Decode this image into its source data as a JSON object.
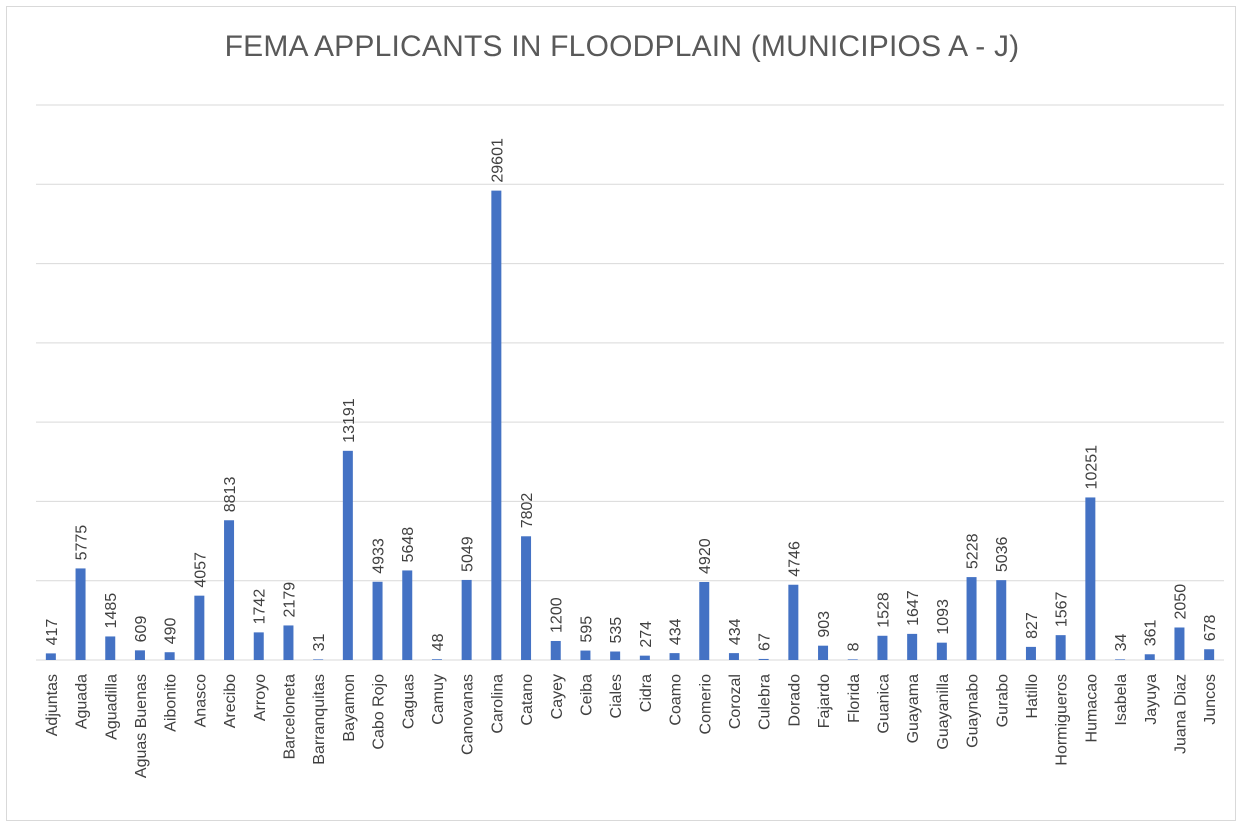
{
  "chart_data": {
    "type": "bar",
    "title": "FEMA APPLICANTS IN FLOODPLAIN (MUNICIPIOS A - J)",
    "xlabel": "",
    "ylabel": "",
    "ylim": [
      0,
      35000
    ],
    "grid": true,
    "legend": "none",
    "bar_color": "#4472c4",
    "categories": [
      "Adjuntas",
      "Aguada",
      "Aguadilla",
      "Aguas Buenas",
      "Aibonito",
      "Anasco",
      "Arecibo",
      "Arroyo",
      "Barceloneta",
      "Barranquitas",
      "Bayamon",
      "Cabo Rojo",
      "Caguas",
      "Camuy",
      "Canovanas",
      "Carolina",
      "Catano",
      "Cayey",
      "Ceiba",
      "Ciales",
      "Cidra",
      "Coamo",
      "Comerio",
      "Corozal",
      "Culebra",
      "Dorado",
      "Fajardo",
      "Florida",
      "Guanica",
      "Guayama",
      "Guayanilla",
      "Guaynabo",
      "Gurabo",
      "Hatillo",
      "Hormigueros",
      "Humacao",
      "Isabela",
      "Jayuya",
      "Juana Diaz",
      "Juncos"
    ],
    "values": [
      417,
      5775,
      1485,
      609,
      490,
      4057,
      8813,
      1742,
      2179,
      31,
      13191,
      4933,
      5648,
      48,
      5049,
      29601,
      7802,
      1200,
      595,
      535,
      274,
      434,
      4920,
      434,
      67,
      4746,
      903,
      8,
      1528,
      1647,
      1093,
      5228,
      5036,
      827,
      1567,
      10251,
      34,
      361,
      2050,
      678
    ],
    "data_labels": [
      "417",
      "5775",
      "1485",
      "609",
      "490",
      "4057",
      "8813",
      "1742",
      "2179",
      "31",
      "13191",
      "4933",
      "5648",
      "48",
      "5049",
      "29601",
      "7802",
      "1200",
      "595",
      "535",
      "274",
      "434",
      "4920",
      "434",
      "67",
      "4746",
      "903",
      "8",
      "1528",
      "1647",
      "1093",
      "5228",
      "5036",
      "827",
      "1567",
      "10251",
      "34",
      "361",
      "2050",
      "678"
    ]
  }
}
